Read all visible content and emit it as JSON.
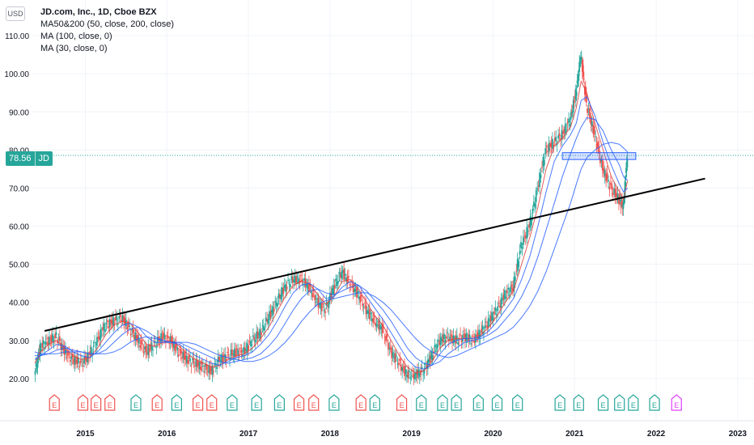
{
  "header": {
    "currency": "USD",
    "title": "JD.com, Inc., 1D, Cboe BZX",
    "indicators": [
      "MA50&200 (50, close, 200, close)",
      "MA (100, close, 0)",
      "MA (30, close, 0)"
    ]
  },
  "price_tag": {
    "value": "78.56",
    "symbol": "JD"
  },
  "colors": {
    "up": "#26a69a",
    "down": "#ef5350",
    "ma_blue": "#2962ff",
    "ma_red": "#e04040",
    "grid": "#f0f3fa",
    "trendline": "#000000",
    "earnings_upcoming": "#e040fb"
  },
  "chart_data": {
    "type": "line",
    "title": "JD.com, Inc., 1D, Cboe BZX",
    "xlabel": "",
    "ylabel": "",
    "x_ticks": [
      "2015",
      "2016",
      "2017",
      "2018",
      "2019",
      "2020",
      "2021",
      "2022",
      "2023"
    ],
    "y_ticks": [
      "20.00",
      "30.00",
      "40.00",
      "50.00",
      "60.00",
      "70.00",
      "80.00",
      "90.00",
      "100.00",
      "110.00"
    ],
    "xlim": [
      2014.35,
      2023.2
    ],
    "ylim": [
      17,
      113
    ],
    "grid": true,
    "last_price": 78.56,
    "series": [
      {
        "name": "JD",
        "x": [
          2014.38,
          2014.45,
          2014.55,
          2014.65,
          2014.75,
          2014.85,
          2014.95,
          2015.05,
          2015.15,
          2015.25,
          2015.35,
          2015.45,
          2015.55,
          2015.65,
          2015.75,
          2015.85,
          2015.95,
          2016.05,
          2016.15,
          2016.25,
          2016.35,
          2016.45,
          2016.55,
          2016.65,
          2016.75,
          2016.85,
          2016.95,
          2017.05,
          2017.15,
          2017.25,
          2017.35,
          2017.45,
          2017.55,
          2017.65,
          2017.75,
          2017.85,
          2017.95,
          2018.05,
          2018.15,
          2018.25,
          2018.35,
          2018.45,
          2018.55,
          2018.65,
          2018.75,
          2018.85,
          2018.95,
          2019.05,
          2019.15,
          2019.25,
          2019.35,
          2019.45,
          2019.55,
          2019.65,
          2019.75,
          2019.85,
          2019.95,
          2020.05,
          2020.15,
          2020.25,
          2020.35,
          2020.45,
          2020.55,
          2020.65,
          2020.75,
          2020.85,
          2020.95,
          2021.02,
          2021.08,
          2021.15,
          2021.25,
          2021.35,
          2021.45,
          2021.55,
          2021.6,
          2021.65
        ],
        "values": [
          21,
          28,
          30,
          31,
          27,
          25,
          24,
          26,
          30,
          34,
          35,
          36,
          33,
          30,
          27,
          29,
          31,
          30,
          27,
          25,
          24,
          23,
          22,
          25,
          26,
          27,
          27,
          30,
          32,
          36,
          40,
          44,
          46,
          46,
          44,
          40,
          38,
          44,
          48,
          45,
          42,
          38,
          35,
          33,
          27,
          24,
          21,
          21,
          22,
          26,
          30,
          31,
          30,
          31,
          30,
          32,
          35,
          38,
          42,
          44,
          55,
          60,
          70,
          80,
          82,
          84,
          88,
          95,
          105,
          92,
          84,
          75,
          70,
          67,
          65,
          78.56
        ]
      },
      {
        "name": "MA (30, close, 0)",
        "values": [
          24,
          27,
          29,
          30,
          28,
          26,
          25,
          25.5,
          28,
          31.5,
          34,
          35,
          34.5,
          32,
          29,
          28.5,
          29.5,
          30,
          28.5,
          26.5,
          25,
          24,
          23,
          23.5,
          25,
          26,
          26.5,
          28,
          30.5,
          33.5,
          37.5,
          41.5,
          44.5,
          45.5,
          45,
          42,
          39.5,
          41.5,
          45.5,
          46,
          43.5,
          40,
          36.5,
          34,
          30,
          26,
          23,
          21.5,
          22,
          24.5,
          28,
          30,
          30.5,
          30.5,
          30.5,
          31.5,
          33.5,
          36.5,
          40,
          43,
          50,
          57,
          65,
          75,
          81,
          83,
          86,
          91,
          98,
          95,
          87,
          80,
          73,
          69,
          67,
          72
        ]
      },
      {
        "name": "MA50",
        "values": [
          25,
          26,
          27.5,
          29,
          28.5,
          27,
          26,
          25.5,
          27,
          29.5,
          32,
          34,
          34.5,
          33.5,
          31,
          29.5,
          29.5,
          29.5,
          29,
          27.5,
          26,
          25,
          24,
          23.5,
          24.5,
          25.5,
          26,
          27,
          29,
          31.5,
          35,
          39,
          42.5,
          44.5,
          45,
          43.5,
          41,
          41.5,
          44,
          45.5,
          44.5,
          41.5,
          38.5,
          35.5,
          32,
          28.5,
          25,
          23,
          22.5,
          23.5,
          26.5,
          29,
          30,
          30.5,
          30.5,
          31,
          32.5,
          35,
          38,
          41,
          46,
          52,
          60,
          69,
          77,
          81,
          84,
          87,
          93,
          94,
          89,
          82,
          76,
          71,
          69,
          70
        ]
      },
      {
        "name": "MA (100, close, 0)",
        "values": [
          26,
          26,
          26.5,
          27.5,
          28,
          27.5,
          27,
          26.5,
          26.5,
          27.5,
          29.5,
          31.5,
          33,
          33.5,
          32.5,
          31,
          30,
          29.5,
          29.5,
          28.5,
          27.5,
          26.5,
          25.5,
          24.5,
          24,
          24.5,
          25,
          25.5,
          26.5,
          28.5,
          31,
          34.5,
          38,
          41,
          43,
          43.5,
          42.5,
          42,
          43,
          44,
          44.5,
          43,
          40.5,
          38,
          35,
          31.5,
          28,
          25.5,
          24,
          23.5,
          24.5,
          26.5,
          28,
          29.5,
          30,
          30.5,
          31.5,
          33,
          35.5,
          38,
          41.5,
          46,
          52,
          59,
          66,
          73,
          79,
          83,
          86,
          88.5,
          88,
          85,
          80,
          76,
          73,
          72
        ]
      },
      {
        "name": "MA200",
        "values": [
          27,
          26.5,
          26.5,
          26.5,
          27,
          27,
          27,
          26.5,
          26.5,
          26.5,
          27,
          28,
          29.5,
          30.5,
          31,
          30.5,
          30,
          29.5,
          29.5,
          29.5,
          29,
          28,
          27,
          26,
          25.5,
          25,
          24.5,
          24.5,
          25,
          26,
          27.5,
          29.5,
          32,
          35,
          37.5,
          39.5,
          40.5,
          41,
          41.5,
          42,
          42.5,
          42.5,
          41.5,
          40,
          38,
          35.5,
          33,
          30.5,
          28.5,
          27,
          26,
          25.5,
          26,
          27,
          28,
          29,
          30,
          31,
          32,
          33.5,
          36,
          39,
          43,
          48,
          54,
          60,
          66,
          71,
          75,
          78,
          80,
          81.5,
          82,
          81.5,
          80.5,
          79.5
        ]
      }
    ],
    "trendline": {
      "x": [
        2014.5,
        2022.6
      ],
      "y": [
        32.5,
        72.5
      ]
    },
    "highlight_box": {
      "x": [
        2020.85,
        2021.75
      ],
      "y": [
        77.5,
        79.3
      ]
    },
    "earnings_markers": [
      {
        "x": 2014.62,
        "label": "E",
        "kind": "down"
      },
      {
        "x": 2014.97,
        "label": "E",
        "kind": "down"
      },
      {
        "x": 2015.13,
        "label": "E",
        "kind": "down"
      },
      {
        "x": 2015.3,
        "label": "E",
        "kind": "down"
      },
      {
        "x": 2015.62,
        "label": "E",
        "kind": "up"
      },
      {
        "x": 2015.88,
        "label": "E",
        "kind": "down"
      },
      {
        "x": 2016.12,
        "label": "E",
        "kind": "up"
      },
      {
        "x": 2016.38,
        "label": "E",
        "kind": "down"
      },
      {
        "x": 2016.55,
        "label": "E",
        "kind": "down"
      },
      {
        "x": 2016.8,
        "label": "E",
        "kind": "up"
      },
      {
        "x": 2017.1,
        "label": "E",
        "kind": "up"
      },
      {
        "x": 2017.38,
        "label": "E",
        "kind": "up"
      },
      {
        "x": 2017.62,
        "label": "E",
        "kind": "down"
      },
      {
        "x": 2017.8,
        "label": "E",
        "kind": "down"
      },
      {
        "x": 2018.05,
        "label": "E",
        "kind": "up"
      },
      {
        "x": 2018.38,
        "label": "E",
        "kind": "down"
      },
      {
        "x": 2018.55,
        "label": "E",
        "kind": "up"
      },
      {
        "x": 2018.88,
        "label": "E",
        "kind": "down"
      },
      {
        "x": 2019.12,
        "label": "E",
        "kind": "up"
      },
      {
        "x": 2019.38,
        "label": "E",
        "kind": "up"
      },
      {
        "x": 2019.55,
        "label": "E",
        "kind": "up"
      },
      {
        "x": 2019.82,
        "label": "E",
        "kind": "up"
      },
      {
        "x": 2020.05,
        "label": "E",
        "kind": "up"
      },
      {
        "x": 2020.3,
        "label": "E",
        "kind": "up"
      },
      {
        "x": 2020.82,
        "label": "E",
        "kind": "up"
      },
      {
        "x": 2021.05,
        "label": "E",
        "kind": "up"
      },
      {
        "x": 2021.35,
        "label": "E",
        "kind": "up"
      },
      {
        "x": 2021.55,
        "label": "E",
        "kind": "up"
      },
      {
        "x": 2021.72,
        "label": "E",
        "kind": "up"
      },
      {
        "x": 2021.98,
        "label": "E",
        "kind": "up"
      },
      {
        "x": 2022.25,
        "label": "E",
        "kind": "upcoming"
      }
    ]
  }
}
